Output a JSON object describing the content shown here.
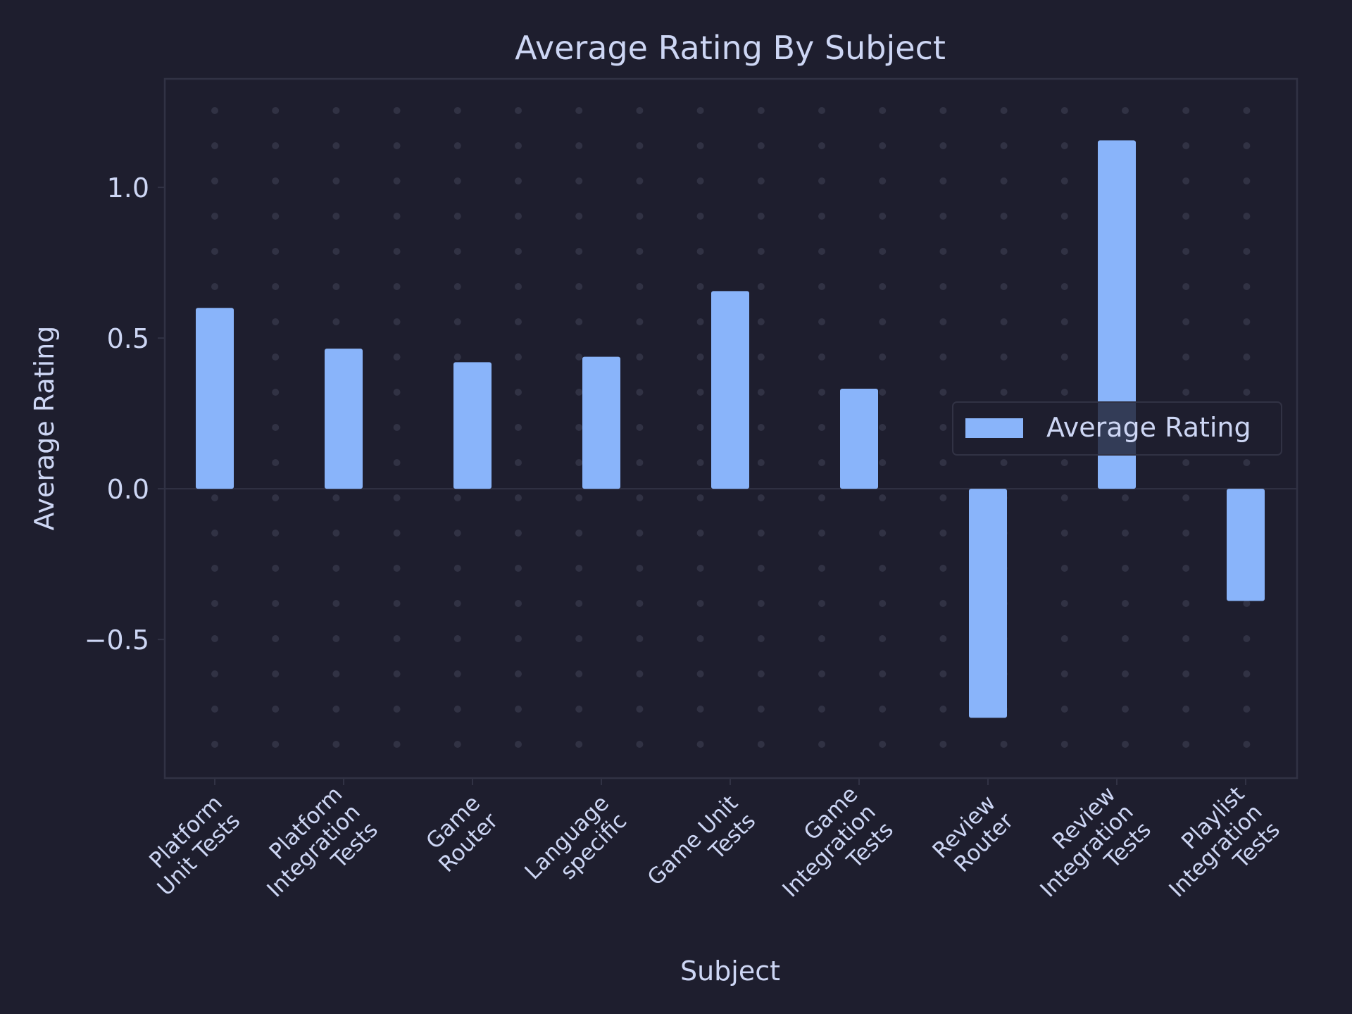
{
  "colors": {
    "background": "#1e1e2e",
    "bar": "#89b4fa",
    "text": "#cdd6f4",
    "spine": "#313244",
    "grid_dot": "#313244"
  },
  "chart_data": {
    "type": "bar",
    "title": "Average Rating By Subject",
    "xlabel": "Subject",
    "ylabel": "Average Rating",
    "categories": [
      "Platform Unit Tests",
      "Platform Integration Tests",
      "Game Router",
      "Language specific",
      "Game Unit Tests",
      "Game Integration Tests",
      "Review Router",
      "Review Integration Tests",
      "Playlist Integration Tests"
    ],
    "category_lines": [
      [
        "Platform",
        "Unit Tests"
      ],
      [
        "Platform",
        "Integration",
        "Tests"
      ],
      [
        "Game",
        "Router"
      ],
      [
        "Language",
        "specific"
      ],
      [
        "Game Unit",
        "Tests"
      ],
      [
        "Game",
        "Integration",
        "Tests"
      ],
      [
        "Review",
        "Router"
      ],
      [
        "Review",
        "Integration",
        "Tests"
      ],
      [
        "Playlist",
        "Integration",
        "Tests"
      ]
    ],
    "series": [
      {
        "name": "Average Rating",
        "values": [
          0.6,
          0.465,
          0.42,
          0.438,
          0.656,
          0.332,
          -0.76,
          1.156,
          -0.372
        ]
      }
    ],
    "ylim": [
      -0.96,
      1.36
    ],
    "yticks": [
      -0.5,
      0.0,
      0.5,
      1.0
    ],
    "ytick_labels": [
      "−0.5",
      "0.0",
      "0.5",
      "1.0"
    ],
    "grid": "dotted",
    "legend": "center-right"
  }
}
